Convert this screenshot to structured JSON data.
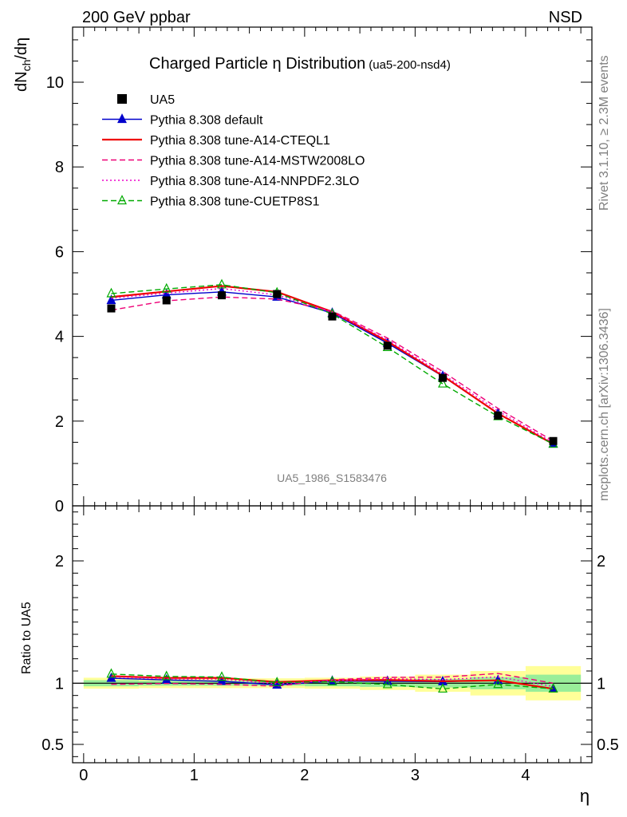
{
  "header": {
    "left": "200 GeV ppbar",
    "right": "NSD"
  },
  "side_labels": {
    "rivet": "Rivet 3.1.10, ≥ 2.3M events",
    "mcplots": "mcplots.cern.ch [arXiv:1306.3436]"
  },
  "chart_data": {
    "type": "line",
    "title": "Charged Particle η Distribution",
    "subtitle": "(ua5-200-nsd4)",
    "analysis_id": "UA5_1986_S1583476",
    "xlabel": "η",
    "ylabel": "dNch/dη",
    "ylabel_ratio": "Ratio to UA5",
    "xlim": [
      -0.1,
      4.6
    ],
    "ylim": [
      0,
      11.3
    ],
    "ylim_ratio": [
      0.35,
      2.45
    ],
    "x_ticks": [
      "0",
      "1",
      "2",
      "3",
      "4"
    ],
    "y_ticks": [
      "0",
      "2",
      "4",
      "6",
      "8",
      "10"
    ],
    "ratio_ticks": [
      "0.5",
      "1",
      "2"
    ],
    "x": [
      0.25,
      0.75,
      1.25,
      1.75,
      2.25,
      2.75,
      3.25,
      3.75,
      4.25
    ],
    "x_edges": [
      0.0,
      0.5,
      1.0,
      1.5,
      2.0,
      2.5,
      3.0,
      3.5,
      4.0,
      4.5
    ],
    "data": {
      "name": "UA5",
      "values": [
        4.66,
        4.85,
        4.97,
        5.0,
        4.47,
        3.78,
        3.02,
        2.13,
        1.53
      ],
      "band_green": [
        0.025,
        0.02,
        0.02,
        0.02,
        0.025,
        0.03,
        0.035,
        0.05,
        0.07
      ],
      "band_yellow": [
        0.045,
        0.04,
        0.04,
        0.04,
        0.045,
        0.055,
        0.07,
        0.1,
        0.14
      ]
    },
    "series": [
      {
        "name": "Pythia 8.308 default",
        "color": "#0000cc",
        "style": "solid",
        "marker": "triangle-filled",
        "values": [
          4.85,
          4.98,
          5.05,
          4.93,
          4.55,
          3.84,
          3.06,
          2.18,
          1.46
        ]
      },
      {
        "name": "Pythia 8.308 tune-A14-CTEQL1",
        "color": "#ee0000",
        "style": "solid",
        "marker": "none",
        "values": [
          4.93,
          5.06,
          5.19,
          5.05,
          4.58,
          3.88,
          3.07,
          2.18,
          1.46
        ]
      },
      {
        "name": "Pythia 8.308 tune-A14-MSTW2008LO",
        "color": "#ee0077",
        "style": "dashed",
        "marker": "none",
        "values": [
          4.62,
          4.84,
          4.93,
          4.88,
          4.6,
          3.96,
          3.17,
          2.3,
          1.53
        ]
      },
      {
        "name": "Pythia 8.308 tune-A14-NNPDF2.3LO",
        "color": "#ee00cc",
        "style": "dotted",
        "marker": "none",
        "values": [
          4.9,
          5.02,
          5.13,
          4.98,
          4.57,
          3.92,
          3.11,
          2.24,
          1.49
        ]
      },
      {
        "name": "Pythia 8.308 tune-CUETP8S1",
        "color": "#00aa00",
        "style": "dashed",
        "marker": "triangle-open",
        "values": [
          5.01,
          5.12,
          5.22,
          5.03,
          4.53,
          3.74,
          2.88,
          2.11,
          1.46
        ]
      }
    ]
  }
}
